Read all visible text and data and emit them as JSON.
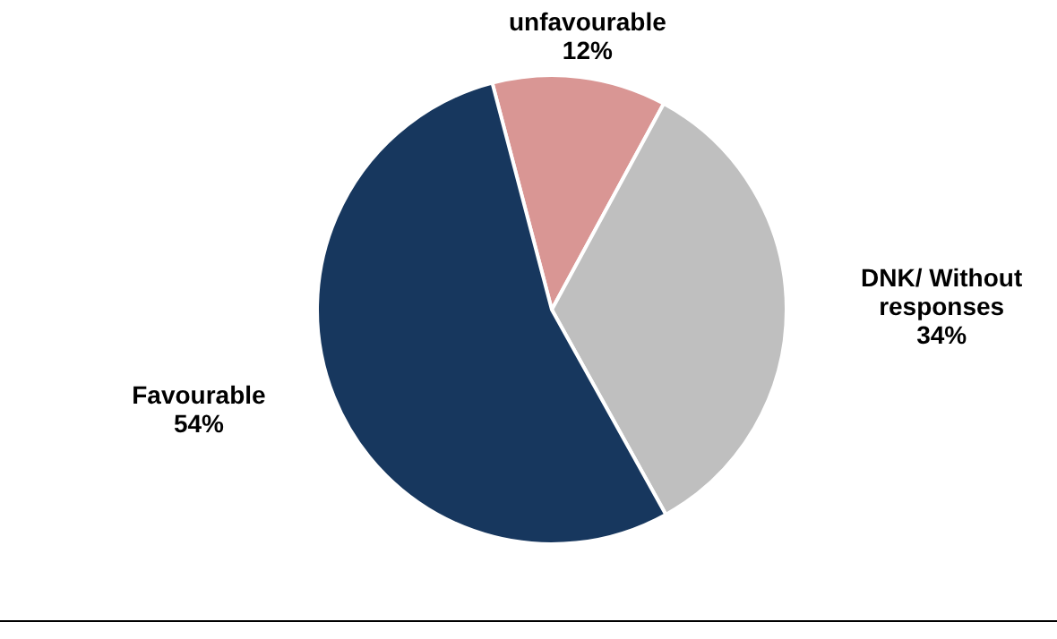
{
  "chart_data": {
    "type": "pie",
    "categories": [
      "unfavourable",
      "DNK/ Without responses",
      "Favourable"
    ],
    "values": [
      12,
      34,
      54
    ],
    "value_labels": [
      "12%",
      "34%",
      "54%"
    ],
    "colors": [
      "#d99694",
      "#bfbfbf",
      "#17375e"
    ]
  }
}
